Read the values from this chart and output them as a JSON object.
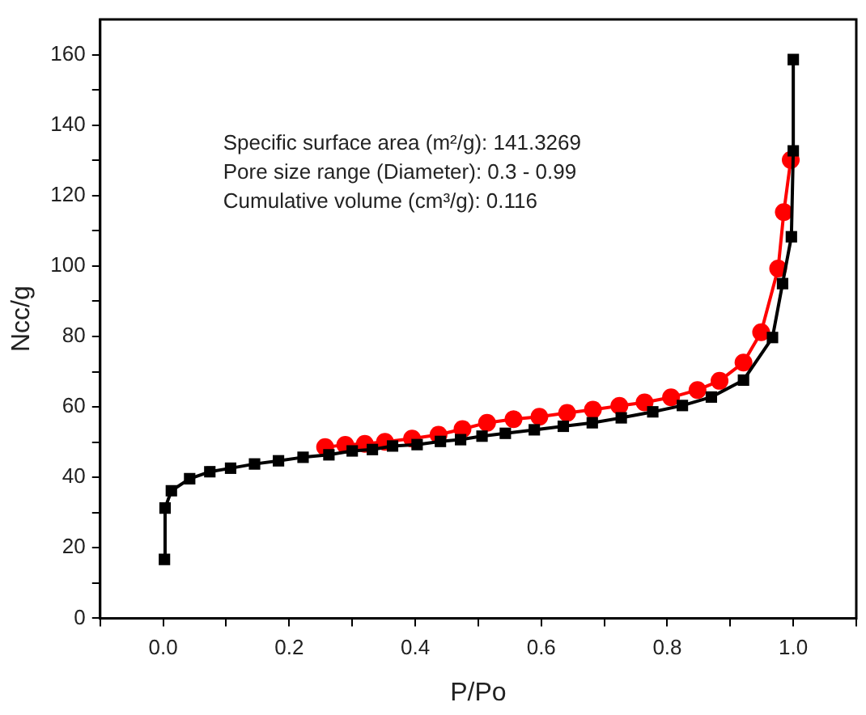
{
  "chart_data": {
    "type": "line",
    "xlabel": "P/Po",
    "ylabel": "Ncc/g",
    "annotations": [
      "Specific surface area (m²/g): 141.3269",
      "Pore size range (Diameter): 0.3 - 0.99",
      "Cumulative volume (cm³/g): 0.116"
    ],
    "xlim": [
      -0.1,
      1.1
    ],
    "xticks": [
      {
        "value": -0.1,
        "label": null
      },
      {
        "value": 0,
        "label": "0.0"
      },
      {
        "value": 0.1,
        "label": null
      },
      0.2,
      {
        "value": 0.3,
        "label": null
      },
      0.4,
      {
        "value": 0.5,
        "label": null
      },
      0.6,
      {
        "value": 0.7,
        "label": null
      },
      0.8,
      {
        "value": 0.9,
        "label": null
      },
      {
        "value": 1,
        "label": "1.0"
      },
      {
        "value": 1.1,
        "label": null
      }
    ],
    "ylim": [
      0,
      170
    ],
    "yticks": [
      0,
      {
        "value": 10,
        "label": null
      },
      20,
      {
        "value": 30,
        "label": null
      },
      40,
      {
        "value": 50,
        "label": null
      },
      60,
      {
        "value": 70,
        "label": null
      },
      80,
      {
        "value": 90,
        "label": null
      },
      100,
      {
        "value": 110,
        "label": null
      },
      120,
      {
        "value": 130,
        "label": null
      },
      140,
      {
        "value": 150,
        "label": null
      },
      160
    ],
    "grid": false,
    "legend": false,
    "line_style": "solid",
    "series": [
      {
        "color": "#000000",
        "marker": "square",
        "x": [
          0.002,
          0.003,
          0.013,
          0.042,
          0.074,
          0.107,
          0.145,
          0.183,
          0.222,
          0.263,
          0.3,
          0.332,
          0.364,
          0.403,
          0.44,
          0.472,
          0.506,
          0.543,
          0.589,
          0.635,
          0.681,
          0.727,
          0.777,
          0.824,
          0.87,
          0.921,
          0.967,
          0.983,
          0.997,
          1.0,
          1.0
        ],
        "values": [
          16.7,
          31.3,
          36.2,
          39.6,
          41.6,
          42.6,
          43.8,
          44.7,
          45.7,
          46.4,
          47.5,
          47.9,
          48.9,
          49.3,
          50.2,
          50.7,
          51.7,
          52.5,
          53.5,
          54.5,
          55.5,
          56.9,
          58.6,
          60.4,
          62.8,
          67.6,
          79.7,
          95.0,
          108.3,
          132.7,
          158.6
        ]
      },
      {
        "color": "#ff0000",
        "marker": "circle",
        "x": [
          0.996,
          0.985,
          0.976,
          0.949,
          0.921,
          0.883,
          0.848,
          0.806,
          0.764,
          0.724,
          0.682,
          0.641,
          0.597,
          0.556,
          0.514,
          0.475,
          0.437,
          0.395,
          0.352,
          0.32,
          0.289,
          0.257
        ],
        "values": [
          130.1,
          115.3,
          99.3,
          81.2,
          72.6,
          67.4,
          64.8,
          62.7,
          61.3,
          60.3,
          59.2,
          58.3,
          57.2,
          56.5,
          55.5,
          53.7,
          52.1,
          51.0,
          50.1,
          49.5,
          49.2,
          48.6
        ]
      }
    ]
  }
}
